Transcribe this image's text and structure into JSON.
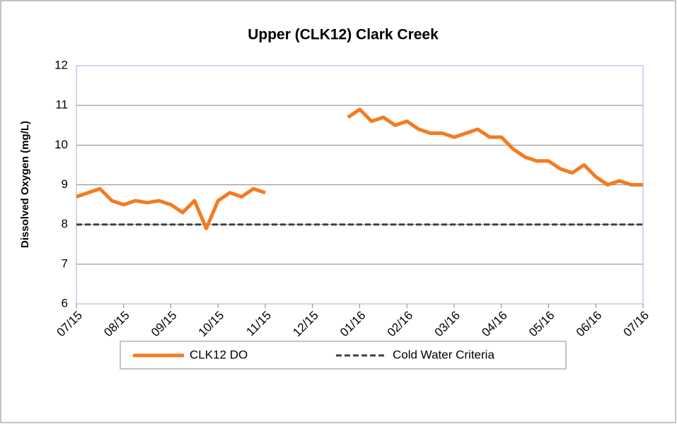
{
  "chart_data": {
    "type": "line",
    "title": "Upper (CLK12) Clark Creek",
    "y_label": "Dissolved Oxygen (mg/L)",
    "categories": [
      "07/15",
      null,
      null,
      null,
      "08/15",
      null,
      null,
      null,
      "09/15",
      null,
      null,
      null,
      "10/15",
      null,
      null,
      null,
      "11/15",
      null,
      null,
      null,
      "12/15",
      null,
      null,
      null,
      "01/16",
      null,
      null,
      null,
      "02/16",
      null,
      null,
      null,
      "03/16",
      null,
      null,
      null,
      "04/16",
      null,
      null,
      null,
      "05/16",
      null,
      null,
      null,
      "06/16",
      null,
      null,
      null,
      "07/16"
    ],
    "series": [
      {
        "name": "CLK12 DO",
        "color": "#f47b20",
        "dashed": false,
        "values": [
          8.7,
          8.8,
          8.9,
          8.6,
          8.5,
          8.6,
          8.55,
          8.6,
          8.5,
          8.3,
          8.6,
          7.9,
          8.6,
          8.8,
          8.7,
          8.9,
          8.8,
          null,
          null,
          null,
          null,
          null,
          null,
          10.7,
          10.9,
          10.6,
          10.7,
          10.5,
          10.6,
          10.4,
          10.3,
          10.3,
          10.2,
          10.3,
          10.4,
          10.2,
          10.2,
          9.9,
          9.7,
          9.6,
          9.6,
          9.4,
          9.3,
          9.5,
          9.2,
          9.0,
          9.1,
          9.0,
          9.0
        ]
      },
      {
        "name": "Cold Water Criteria",
        "color": "#404040",
        "dashed": true,
        "values": [
          8,
          8,
          8,
          8,
          8,
          8,
          8,
          8,
          8,
          8,
          8,
          8,
          8,
          8,
          8,
          8,
          8,
          8,
          8,
          8,
          8,
          8,
          8,
          8,
          8,
          8,
          8,
          8,
          8,
          8,
          8,
          8,
          8,
          8,
          8,
          8,
          8,
          8,
          8,
          8,
          8,
          8,
          8,
          8,
          8,
          8,
          8,
          8,
          8
        ]
      }
    ],
    "ylim": [
      6,
      12
    ],
    "yticks": [
      6,
      7,
      8,
      9,
      10,
      11,
      12
    ],
    "grid": true,
    "legend": "bottom"
  }
}
